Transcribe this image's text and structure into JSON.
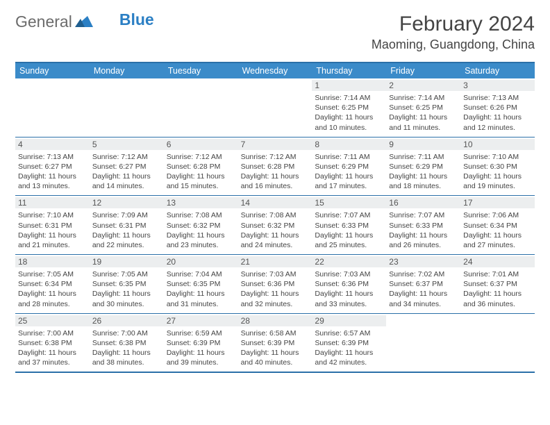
{
  "brand": {
    "part1": "General",
    "part2": "Blue"
  },
  "title": "February 2024",
  "location": "Maoming, Guangdong, China",
  "colors": {
    "header_bg": "#3b8bc9",
    "border": "#2a6fa8",
    "daynum_bg": "#eceeef",
    "text": "#444444"
  },
  "days_of_week": [
    "Sunday",
    "Monday",
    "Tuesday",
    "Wednesday",
    "Thursday",
    "Friday",
    "Saturday"
  ],
  "weeks": [
    [
      null,
      null,
      null,
      null,
      {
        "n": "1",
        "sr": "7:14 AM",
        "ss": "6:25 PM",
        "dl": "11 hours and 10 minutes."
      },
      {
        "n": "2",
        "sr": "7:14 AM",
        "ss": "6:25 PM",
        "dl": "11 hours and 11 minutes."
      },
      {
        "n": "3",
        "sr": "7:13 AM",
        "ss": "6:26 PM",
        "dl": "11 hours and 12 minutes."
      }
    ],
    [
      {
        "n": "4",
        "sr": "7:13 AM",
        "ss": "6:27 PM",
        "dl": "11 hours and 13 minutes."
      },
      {
        "n": "5",
        "sr": "7:12 AM",
        "ss": "6:27 PM",
        "dl": "11 hours and 14 minutes."
      },
      {
        "n": "6",
        "sr": "7:12 AM",
        "ss": "6:28 PM",
        "dl": "11 hours and 15 minutes."
      },
      {
        "n": "7",
        "sr": "7:12 AM",
        "ss": "6:28 PM",
        "dl": "11 hours and 16 minutes."
      },
      {
        "n": "8",
        "sr": "7:11 AM",
        "ss": "6:29 PM",
        "dl": "11 hours and 17 minutes."
      },
      {
        "n": "9",
        "sr": "7:11 AM",
        "ss": "6:29 PM",
        "dl": "11 hours and 18 minutes."
      },
      {
        "n": "10",
        "sr": "7:10 AM",
        "ss": "6:30 PM",
        "dl": "11 hours and 19 minutes."
      }
    ],
    [
      {
        "n": "11",
        "sr": "7:10 AM",
        "ss": "6:31 PM",
        "dl": "11 hours and 21 minutes."
      },
      {
        "n": "12",
        "sr": "7:09 AM",
        "ss": "6:31 PM",
        "dl": "11 hours and 22 minutes."
      },
      {
        "n": "13",
        "sr": "7:08 AM",
        "ss": "6:32 PM",
        "dl": "11 hours and 23 minutes."
      },
      {
        "n": "14",
        "sr": "7:08 AM",
        "ss": "6:32 PM",
        "dl": "11 hours and 24 minutes."
      },
      {
        "n": "15",
        "sr": "7:07 AM",
        "ss": "6:33 PM",
        "dl": "11 hours and 25 minutes."
      },
      {
        "n": "16",
        "sr": "7:07 AM",
        "ss": "6:33 PM",
        "dl": "11 hours and 26 minutes."
      },
      {
        "n": "17",
        "sr": "7:06 AM",
        "ss": "6:34 PM",
        "dl": "11 hours and 27 minutes."
      }
    ],
    [
      {
        "n": "18",
        "sr": "7:05 AM",
        "ss": "6:34 PM",
        "dl": "11 hours and 28 minutes."
      },
      {
        "n": "19",
        "sr": "7:05 AM",
        "ss": "6:35 PM",
        "dl": "11 hours and 30 minutes."
      },
      {
        "n": "20",
        "sr": "7:04 AM",
        "ss": "6:35 PM",
        "dl": "11 hours and 31 minutes."
      },
      {
        "n": "21",
        "sr": "7:03 AM",
        "ss": "6:36 PM",
        "dl": "11 hours and 32 minutes."
      },
      {
        "n": "22",
        "sr": "7:03 AM",
        "ss": "6:36 PM",
        "dl": "11 hours and 33 minutes."
      },
      {
        "n": "23",
        "sr": "7:02 AM",
        "ss": "6:37 PM",
        "dl": "11 hours and 34 minutes."
      },
      {
        "n": "24",
        "sr": "7:01 AM",
        "ss": "6:37 PM",
        "dl": "11 hours and 36 minutes."
      }
    ],
    [
      {
        "n": "25",
        "sr": "7:00 AM",
        "ss": "6:38 PM",
        "dl": "11 hours and 37 minutes."
      },
      {
        "n": "26",
        "sr": "7:00 AM",
        "ss": "6:38 PM",
        "dl": "11 hours and 38 minutes."
      },
      {
        "n": "27",
        "sr": "6:59 AM",
        "ss": "6:39 PM",
        "dl": "11 hours and 39 minutes."
      },
      {
        "n": "28",
        "sr": "6:58 AM",
        "ss": "6:39 PM",
        "dl": "11 hours and 40 minutes."
      },
      {
        "n": "29",
        "sr": "6:57 AM",
        "ss": "6:39 PM",
        "dl": "11 hours and 42 minutes."
      },
      null,
      null
    ]
  ],
  "labels": {
    "sunrise": "Sunrise: ",
    "sunset": "Sunset: ",
    "daylight": "Daylight: "
  }
}
